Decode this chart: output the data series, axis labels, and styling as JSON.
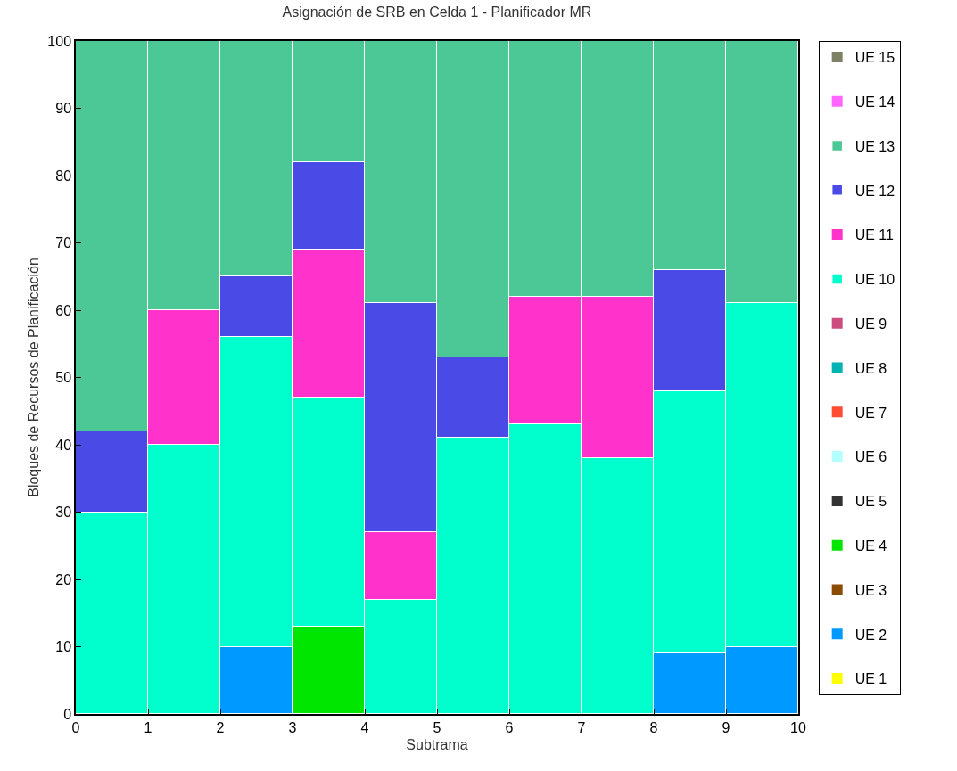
{
  "chart_data": {
    "type": "bar",
    "title": "Asignación de SRB en Celda 1 - Planificador MR",
    "xlabel": "Subtrama",
    "ylabel": "Bloques de Recursos de Planificación",
    "x": [
      0.5,
      1.5,
      2.5,
      3.5,
      4.5,
      5.5,
      6.5,
      7.5,
      8.5,
      9.5
    ],
    "xlim": [
      0,
      10
    ],
    "xticks": [
      0,
      1,
      2,
      3,
      4,
      5,
      6,
      7,
      8,
      9,
      10
    ],
    "ylim": [
      0,
      100
    ],
    "yticks": [
      0,
      10,
      20,
      30,
      40,
      50,
      60,
      70,
      80,
      90,
      100
    ],
    "stacked": true,
    "legend": "right",
    "series": [
      {
        "name": "UE 1",
        "color": "#ffff00",
        "values": [
          0,
          0,
          0,
          0,
          0,
          0,
          0,
          0,
          0,
          0
        ]
      },
      {
        "name": "UE 2",
        "color": "#0099ff",
        "values": [
          0,
          0,
          10,
          0,
          0,
          0,
          0,
          0,
          9,
          10
        ]
      },
      {
        "name": "UE 3",
        "color": "#8c4c00",
        "values": [
          0,
          0,
          0,
          0,
          0,
          0,
          0,
          0,
          0,
          0
        ]
      },
      {
        "name": "UE 4",
        "color": "#00e600",
        "values": [
          0,
          0,
          0,
          13,
          0,
          0,
          0,
          0,
          0,
          0
        ]
      },
      {
        "name": "UE 5",
        "color": "#333333",
        "values": [
          0,
          0,
          0,
          0,
          0,
          0,
          0,
          0,
          0,
          0
        ]
      },
      {
        "name": "UE 6",
        "color": "#b3ffff",
        "values": [
          0,
          0,
          0,
          0,
          0,
          0,
          0,
          0,
          0,
          0
        ]
      },
      {
        "name": "UE 7",
        "color": "#ff4c33",
        "values": [
          0,
          0,
          0,
          0,
          0,
          0,
          0,
          0,
          0,
          0
        ]
      },
      {
        "name": "UE 8",
        "color": "#00b3b3",
        "values": [
          0,
          0,
          0,
          0,
          0,
          0,
          0,
          0,
          0,
          0
        ]
      },
      {
        "name": "UE 9",
        "color": "#cc4c80",
        "values": [
          0,
          0,
          0,
          0,
          0,
          0,
          0,
          0,
          0,
          0
        ]
      },
      {
        "name": "UE 10",
        "color": "#00ffcc",
        "values": [
          30,
          40,
          46,
          34,
          17,
          41,
          43,
          38,
          39,
          51
        ]
      },
      {
        "name": "UE 11",
        "color": "#ff33cc",
        "values": [
          0,
          20,
          0,
          22,
          10,
          0,
          19,
          24,
          0,
          0
        ]
      },
      {
        "name": "UE 12",
        "color": "#4a4ae6",
        "values": [
          12,
          0,
          9,
          13,
          34,
          12,
          0,
          0,
          18,
          0
        ]
      },
      {
        "name": "UE 13",
        "color": "#4cc896",
        "values": [
          58,
          40,
          35,
          18,
          39,
          47,
          38,
          38,
          34,
          39
        ]
      },
      {
        "name": "UE 14",
        "color": "#ff66ff",
        "values": [
          0,
          0,
          0,
          0,
          0,
          0,
          0,
          0,
          0,
          0
        ]
      },
      {
        "name": "UE 15",
        "color": "#808066",
        "values": [
          0,
          0,
          0,
          0,
          0,
          0,
          0,
          0,
          0,
          0
        ]
      }
    ]
  }
}
